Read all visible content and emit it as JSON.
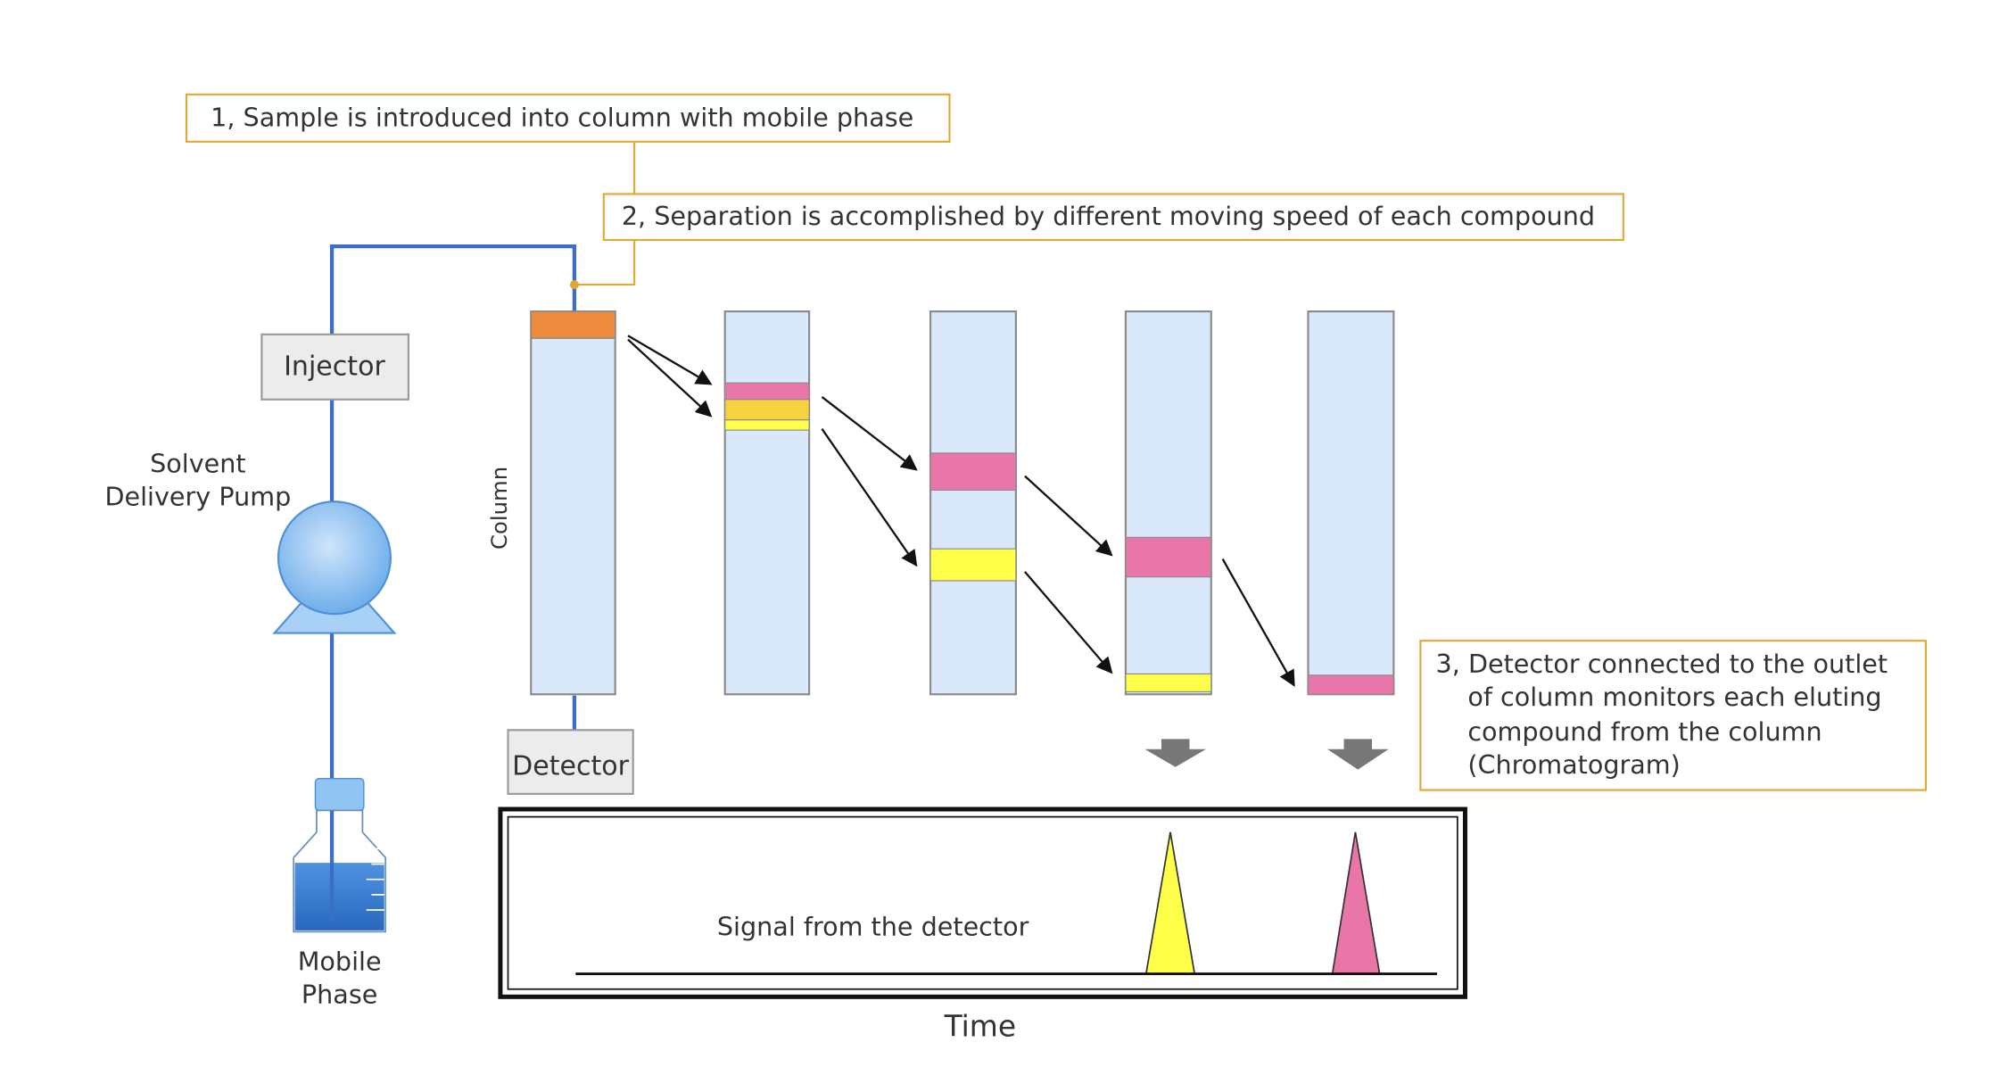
{
  "steps": {
    "step1": "1,  Sample is introduced into column with mobile phase",
    "step2": "2,  Separation is accomplished by different moving speed of each compound",
    "step3": [
      "3,  Detector connected to the outlet",
      "of column monitors each eluting",
      "compound from the column",
      "(Chromatogram)"
    ]
  },
  "components": {
    "injector": "Injector",
    "pump": [
      "Solvent",
      "Delivery Pump"
    ],
    "column": "Column",
    "detector": "Detector",
    "mobile_phase": [
      "Mobile",
      "Phase"
    ]
  },
  "chromatogram": {
    "signal_label": "Signal from the detector",
    "axis_label": "Time"
  },
  "colors": {
    "callout_border": "#e0a836",
    "tubing": "#3b6fc4",
    "column_fill": "#d9e9fb",
    "sample_band": "#ed8a3c",
    "compound_a": "#e876a8",
    "compound_b": "#ffff4a",
    "compound_b_alt": "#f5d23e",
    "box_fill": "#ececec",
    "pump_fill": "#7fb9f0",
    "liquid": "#3a7fd6"
  }
}
